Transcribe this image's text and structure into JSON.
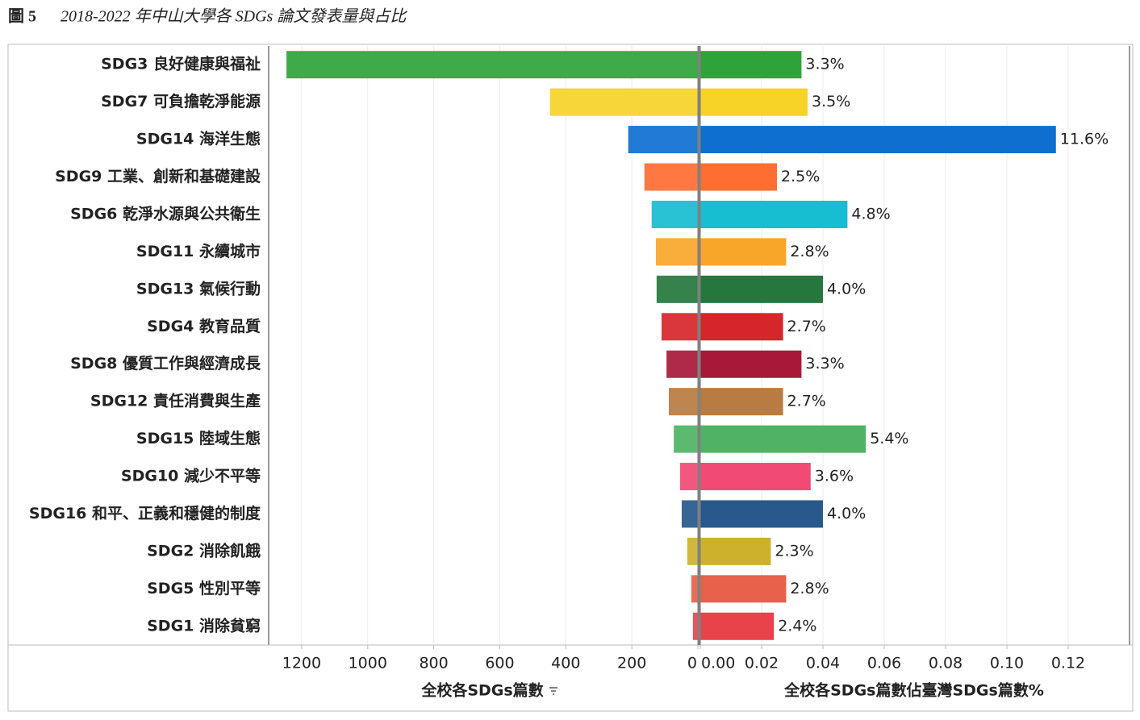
{
  "chart_data": [
    {
      "type": "bar",
      "figure_label": "圖 5",
      "title": "2018-2022 年中山大學各 SDGs 論文發表量與占比",
      "categories": [
        "SDG3 良好健康與福祉",
        "SDG7 可負擔乾淨能源",
        "SDG14 海洋生態",
        "SDG9 工業、創新和基礎建設",
        "SDG6 乾淨水源與公共衛生",
        "SDG11 永續城市",
        "SDG13 氣候行動",
        "SDG4 教育品質",
        "SDG8 優質工作與經濟成長",
        "SDG12 責任消費與生產",
        "SDG15 陸域生態",
        "SDG10 減少不平等",
        "SDG16 和平、正義和穩健的制度",
        "SDG2 消除飢餓",
        "SDG5 性別平等",
        "SDG1 消除貧窮"
      ],
      "values": [
        1246,
        448,
        211,
        162,
        140,
        127,
        125,
        110,
        95,
        88,
        73,
        54,
        49,
        32,
        20,
        15
      ],
      "colors": [
        "#2ea33a",
        "#f5d327",
        "#0e6fd1",
        "#fe6e32",
        "#17bdd0",
        "#f8a62a",
        "#25773d",
        "#d6262b",
        "#a81838",
        "#b87b41",
        "#50b364",
        "#f14a74",
        "#28588c",
        "#cdb12c",
        "#e7614b",
        "#e8424b"
      ],
      "xlim": [
        0,
        1300
      ],
      "xticks": [
        0,
        200,
        400,
        600,
        800,
        1000,
        1200
      ],
      "x_label": "全校各SDGs篇數",
      "reversed": true,
      "grid": true
    },
    {
      "type": "bar",
      "values": [
        0.033,
        0.035,
        0.116,
        0.025,
        0.048,
        0.028,
        0.04,
        0.027,
        0.033,
        0.027,
        0.054,
        0.036,
        0.04,
        0.023,
        0.028,
        0.024
      ],
      "value_labels": [
        "3.3%",
        "3.5%",
        "11.6%",
        "2.5%",
        "4.8%",
        "2.8%",
        "4.0%",
        "2.7%",
        "3.3%",
        "2.7%",
        "5.4%",
        "3.6%",
        "4.0%",
        "2.3%",
        "2.8%",
        "2.4%"
      ],
      "xlim": [
        0,
        0.14
      ],
      "xticks": [
        {
          "value": 0,
          "label": "0.00"
        },
        0.02,
        0.04,
        0.06,
        0.08,
        {
          "value": 0.1,
          "label": "0.10"
        },
        0.12
      ],
      "x_label": "全校各SDGs篇數佔臺灣SDGs篇數%",
      "reversed": false,
      "grid": true
    }
  ]
}
